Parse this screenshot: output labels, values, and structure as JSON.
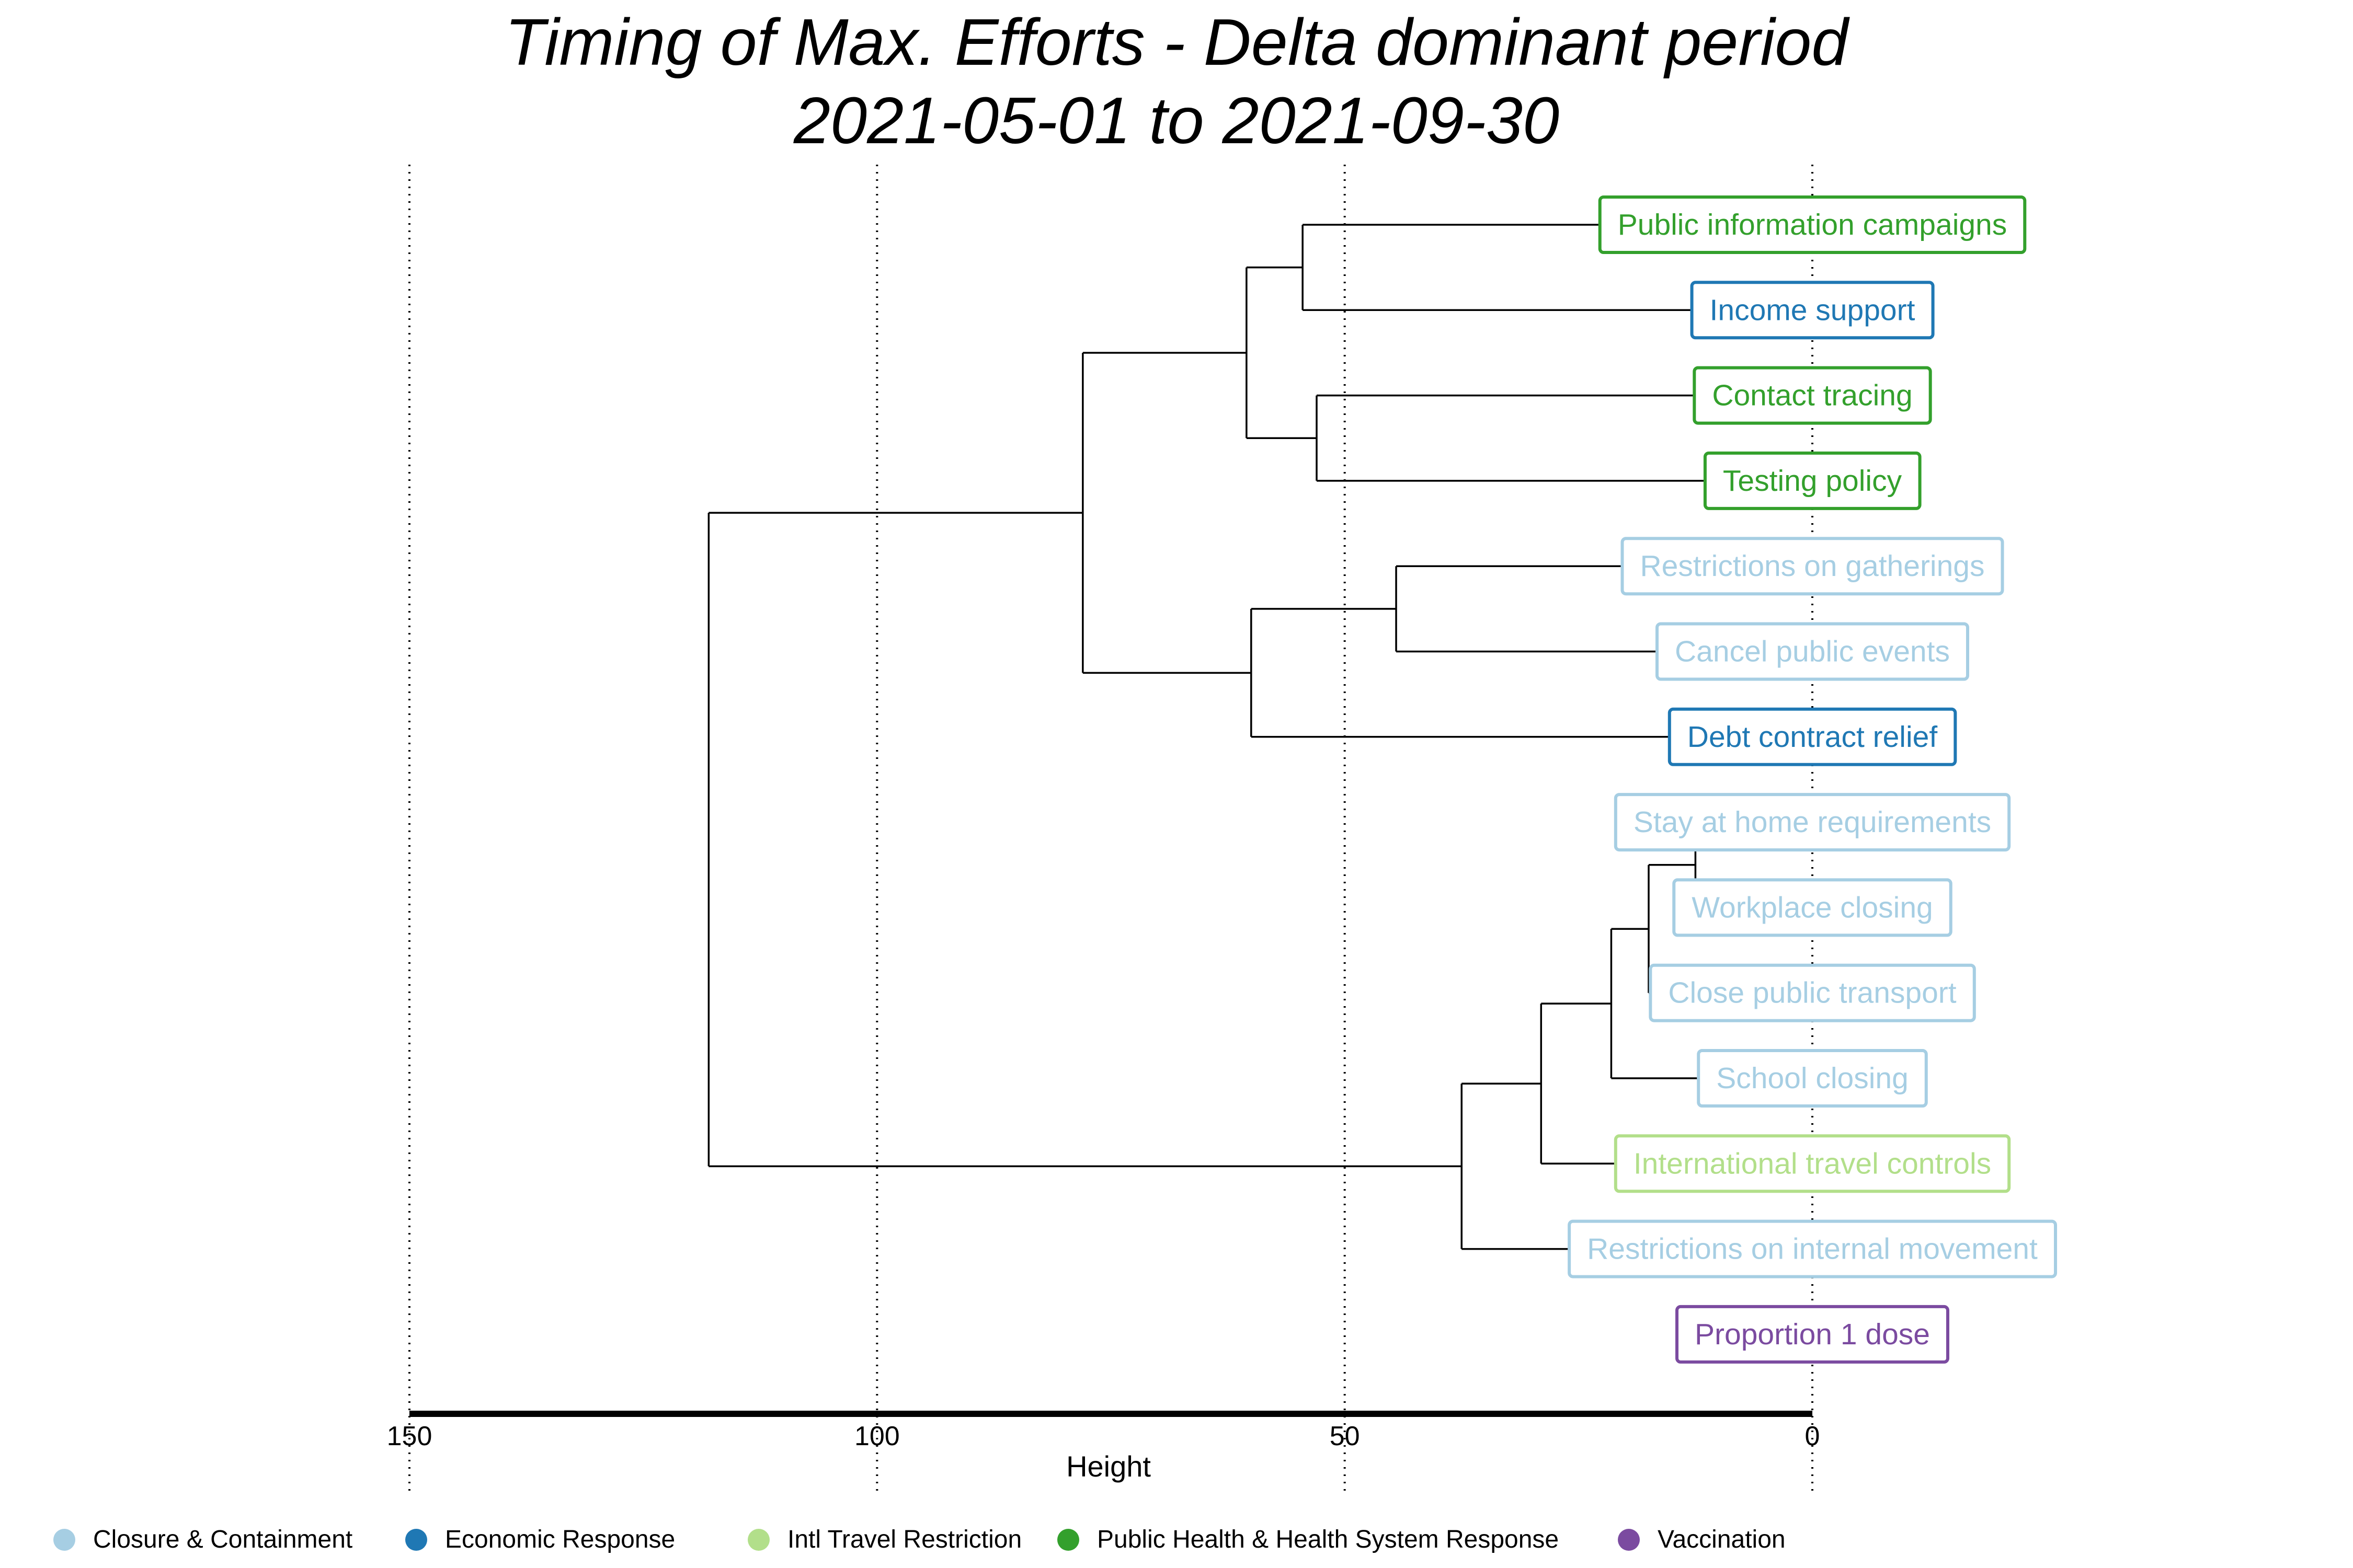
{
  "chart_data": {
    "type": "dendrogram",
    "title": "Timing of Max. Efforts - Delta dominant period",
    "subtitle": "2021-05-01 to 2021-09-30",
    "xlabel": "Height",
    "xlim": [
      150,
      0
    ],
    "x_ticks": [
      150,
      100,
      50,
      0
    ],
    "x_tick_labels": [
      "150",
      "100",
      "50",
      "0"
    ],
    "grid": "vertical dotted lines at major ticks",
    "legend_position": "bottom",
    "categories": [
      {
        "name": "Closure & Containment",
        "color": "#a6cee3"
      },
      {
        "name": "Economic Response",
        "color": "#1f78b4"
      },
      {
        "name": "Intl Travel Restriction",
        "color": "#b2df8a"
      },
      {
        "name": "Public Health & Health System Response",
        "color": "#33a02c"
      },
      {
        "name": "Vaccination",
        "color": "#7b4ba0"
      }
    ],
    "leaves": [
      {
        "label": "Public information campaigns",
        "category": "Public Health & Health System Response"
      },
      {
        "label": "Income support",
        "category": "Economic Response"
      },
      {
        "label": "Contact tracing",
        "category": "Public Health & Health System Response"
      },
      {
        "label": "Testing policy",
        "category": "Public Health & Health System Response"
      },
      {
        "label": "Restrictions on gatherings",
        "category": "Closure & Containment"
      },
      {
        "label": "Cancel public events",
        "category": "Closure & Containment"
      },
      {
        "label": "Debt contract relief",
        "category": "Economic Response"
      },
      {
        "label": "Stay at home requirements",
        "category": "Closure & Containment"
      },
      {
        "label": "Workplace closing",
        "category": "Closure & Containment"
      },
      {
        "label": "Close public transport",
        "category": "Closure & Containment"
      },
      {
        "label": "School closing",
        "category": "Closure & Containment"
      },
      {
        "label": "International travel controls",
        "category": "Intl Travel Restriction"
      },
      {
        "label": "Restrictions on internal movement",
        "category": "Closure & Containment"
      },
      {
        "label": "Proportion 1 dose",
        "category": "Vaccination"
      }
    ],
    "merges": [
      {
        "id": "m1",
        "children": [
          "Public information campaigns",
          "Income support"
        ],
        "height": 54.5
      },
      {
        "id": "m2",
        "children": [
          "Contact tracing",
          "Testing policy"
        ],
        "height": 53
      },
      {
        "id": "m3",
        "children": [
          "m1",
          "m2"
        ],
        "height": 60.5
      },
      {
        "id": "m4",
        "children": [
          "Restrictions on gatherings",
          "Cancel public events"
        ],
        "height": 44.5
      },
      {
        "id": "m5",
        "children": [
          "m4",
          "Debt contract relief"
        ],
        "height": 60
      },
      {
        "id": "m6",
        "children": [
          "m3",
          "m5"
        ],
        "height": 78
      },
      {
        "id": "m7",
        "children": [
          "Stay at home requirements",
          "Workplace closing"
        ],
        "height": 12.5
      },
      {
        "id": "m8",
        "children": [
          "m7",
          "Close public transport"
        ],
        "height": 17.5
      },
      {
        "id": "m9",
        "children": [
          "m8",
          "School closing"
        ],
        "height": 21.5
      },
      {
        "id": "m10",
        "children": [
          "m9",
          "International travel controls"
        ],
        "height": 29
      },
      {
        "id": "m11",
        "children": [
          "m10",
          "Restrictions on internal movement"
        ],
        "height": 37.5
      },
      {
        "id": "m12",
        "children": [
          "m6",
          "m11"
        ],
        "height": 118
      }
    ],
    "unmerged": [
      "Proportion 1 dose"
    ]
  }
}
